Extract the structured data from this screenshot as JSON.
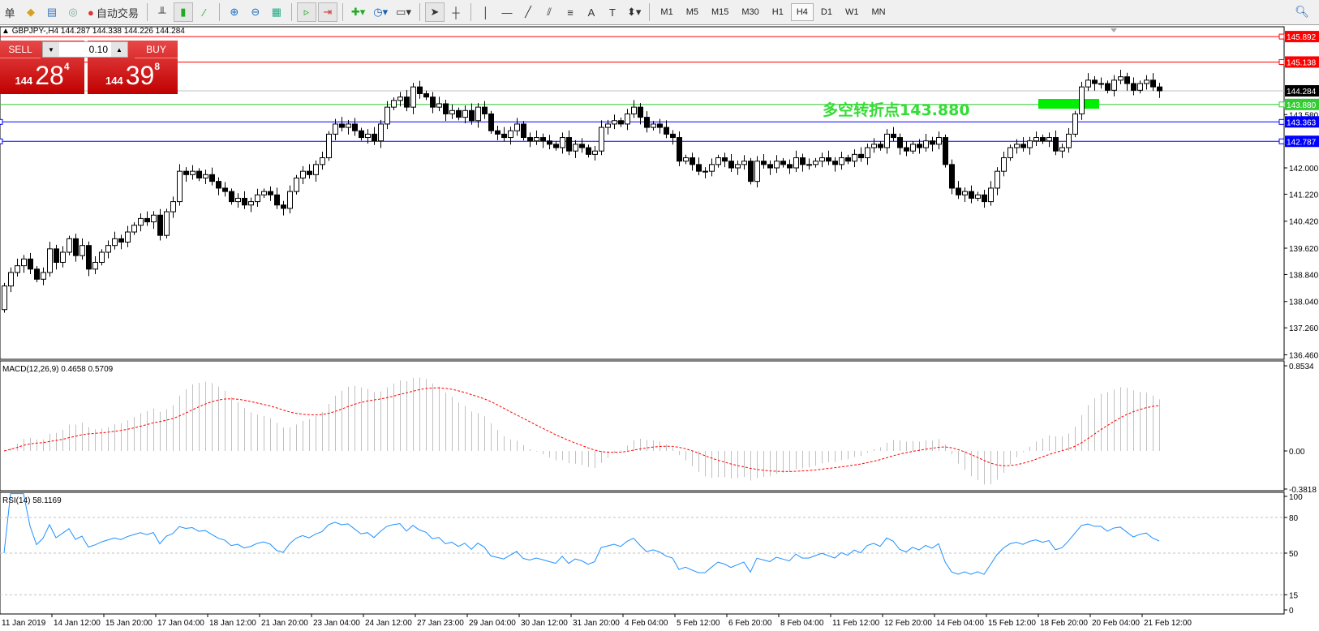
{
  "toolbar": {
    "left_text": "单",
    "auto_trade": "自动交易",
    "timeframes": [
      "M1",
      "M5",
      "M15",
      "M30",
      "H1",
      "H4",
      "D1",
      "W1",
      "MN"
    ],
    "active_timeframe": "H4"
  },
  "header": {
    "symbol_line": "GBPJPY-,H4  144.287 144.338 144.226 144.284"
  },
  "trade": {
    "sell_label": "SELL",
    "buy_label": "BUY",
    "lot": "0.10",
    "sell_prefix": "144",
    "sell_main": "28",
    "sell_sup": "4",
    "buy_prefix": "144",
    "buy_main": "39",
    "buy_sup": "8"
  },
  "annotation": {
    "text": "多空转折点143.880",
    "color": "#33dd33"
  },
  "chart_data": {
    "type": "candlestick",
    "price_ticks": [
      "143.580",
      "142.000",
      "141.220",
      "140.420",
      "139.620",
      "138.840",
      "138.040",
      "137.260",
      "136.460"
    ],
    "price_tick_values": [
      143.58,
      142.0,
      141.22,
      140.42,
      139.62,
      138.84,
      138.04,
      137.26,
      136.46
    ],
    "hlines": [
      {
        "price": 145.892,
        "label": "145.892",
        "color": "#ff0000"
      },
      {
        "price": 145.138,
        "label": "145.138",
        "color": "#ff0000"
      },
      {
        "price": 144.284,
        "label": "144.284",
        "color": "#000000",
        "line": "#c0c0c0"
      },
      {
        "price": 143.88,
        "label": "143.880",
        "color": "#33cc33"
      },
      {
        "price": 143.363,
        "label": "143.363",
        "color": "#0000ff"
      },
      {
        "price": 142.787,
        "label": "142.787",
        "color": "#0000ff"
      }
    ],
    "closes": [
      138.5,
      138.9,
      139.1,
      139.3,
      139.0,
      138.7,
      138.9,
      139.6,
      139.2,
      139.5,
      139.9,
      139.4,
      139.7,
      139.0,
      139.2,
      139.5,
      139.7,
      139.9,
      139.8,
      140.1,
      140.3,
      140.5,
      140.4,
      140.6,
      140.0,
      140.7,
      141.0,
      141.9,
      141.8,
      141.9,
      141.7,
      141.8,
      141.6,
      141.4,
      141.3,
      141.0,
      141.1,
      140.9,
      141.0,
      141.2,
      141.3,
      141.2,
      140.9,
      140.8,
      141.3,
      141.7,
      141.9,
      141.8,
      142.1,
      142.3,
      143.0,
      143.3,
      143.2,
      143.3,
      143.1,
      142.9,
      143.0,
      142.8,
      143.3,
      143.8,
      144.0,
      144.1,
      143.8,
      144.4,
      144.2,
      144.1,
      143.8,
      143.9,
      143.6,
      143.7,
      143.5,
      143.7,
      143.4,
      143.8,
      143.6,
      143.1,
      143.0,
      142.9,
      143.1,
      143.3,
      142.9,
      142.8,
      142.9,
      142.8,
      142.7,
      142.6,
      142.9,
      142.5,
      142.7,
      142.6,
      142.4,
      142.5,
      143.2,
      143.3,
      143.4,
      143.3,
      143.6,
      143.8,
      143.5,
      143.2,
      143.3,
      143.2,
      143.0,
      142.9,
      142.2,
      142.3,
      142.1,
      141.9,
      141.9,
      142.1,
      142.3,
      142.2,
      142.0,
      142.1,
      142.2,
      141.6,
      142.2,
      142.1,
      142.0,
      142.2,
      142.1,
      142.0,
      142.3,
      142.1,
      142.1,
      142.2,
      142.3,
      142.2,
      142.1,
      142.3,
      142.2,
      142.4,
      142.3,
      142.6,
      142.7,
      142.6,
      143.0,
      142.9,
      142.6,
      142.5,
      142.7,
      142.6,
      142.8,
      142.7,
      142.9,
      142.1,
      141.4,
      141.2,
      141.3,
      141.1,
      141.2,
      141.0,
      141.4,
      141.9,
      142.3,
      142.6,
      142.7,
      142.6,
      142.8,
      142.9,
      142.8,
      142.9,
      142.5,
      142.6,
      143.0,
      143.6,
      144.4,
      144.6,
      144.5,
      144.5,
      144.3,
      144.6,
      144.7,
      144.5,
      144.3,
      144.5,
      144.6,
      144.4,
      144.284
    ],
    "first_open": 137.8,
    "time_labels": [
      "11 Jan 2019",
      "14 Jan 12:00",
      "15 Jan 20:00",
      "17 Jan 04:00",
      "18 Jan 12:00",
      "21 Jan 20:00",
      "23 Jan 04:00",
      "24 Jan 12:00",
      "27 Jan 23:00",
      "29 Jan 04:00",
      "30 Jan 12:00",
      "31 Jan 20:00",
      "4 Feb 04:00",
      "5 Feb 12:00",
      "6 Feb 20:00",
      "8 Feb 04:00",
      "11 Feb 12:00",
      "12 Feb 20:00",
      "14 Feb 04:00",
      "15 Feb 12:00",
      "18 Feb 20:00",
      "20 Feb 04:00",
      "21 Feb 12:00"
    ],
    "macd": {
      "title": "MACD(12,26,9) 0.4658 0.5709",
      "fast": 12,
      "slow": 26,
      "signal": 9,
      "ticks": [
        "0.8534",
        "0.00",
        "-0.3818"
      ],
      "tick_values": [
        0.8534,
        0,
        -0.3818
      ],
      "hist_color": "#c0c0c0",
      "signal_color": "#ff0000"
    },
    "rsi": {
      "title": "RSI(14) 58.1169",
      "period": 14,
      "ticks": [
        "100",
        "80",
        "50",
        "15",
        "0"
      ],
      "tick_values": [
        100,
        80,
        50,
        15,
        0
      ],
      "levels": [
        80,
        50,
        15
      ],
      "color": "#1e90ff"
    }
  }
}
